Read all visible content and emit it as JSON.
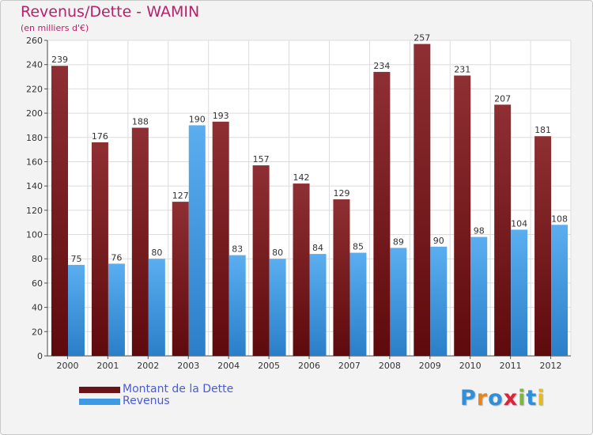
{
  "header": {
    "title": "Revenus/Dette - WAMIN",
    "subtitle": "(en milliers d'€)"
  },
  "colors": {
    "title": "#b5226a",
    "dette_top": "#8e2f33",
    "dette_bottom": "#5e0a0c",
    "revenus_top": "#5aaef0",
    "revenus_bottom": "#2a7fc8",
    "legend_text": "#4a5bd6"
  },
  "chart_data": {
    "type": "bar",
    "categories": [
      "2000",
      "2001",
      "2002",
      "2003",
      "2004",
      "2005",
      "2006",
      "2007",
      "2008",
      "2009",
      "2010",
      "2011",
      "2012"
    ],
    "series": [
      {
        "name": "Montant de la Dette",
        "values": [
          239,
          176,
          188,
          127,
          193,
          157,
          142,
          129,
          234,
          257,
          231,
          207,
          181
        ]
      },
      {
        "name": "Revenus",
        "values": [
          75,
          76,
          80,
          190,
          83,
          80,
          84,
          85,
          89,
          90,
          98,
          104,
          108
        ]
      }
    ],
    "title": "Revenus/Dette - WAMIN",
    "subtitle": "(en milliers d'€)",
    "ylim": [
      0,
      260
    ],
    "yticks": [
      0,
      20,
      40,
      60,
      80,
      100,
      120,
      140,
      160,
      180,
      200,
      220,
      240,
      260
    ],
    "grid": true,
    "legend_position": "bottom-left"
  },
  "legend": {
    "items": [
      {
        "label": "Montant de la Dette"
      },
      {
        "label": "Revenus"
      }
    ]
  },
  "logo": {
    "letters": [
      {
        "char": "P",
        "color": "#2f8fd8"
      },
      {
        "char": "r",
        "color": "#e8841c"
      },
      {
        "char": "o",
        "color": "#2f8fd8"
      },
      {
        "char": "x",
        "color": "#d9243a"
      },
      {
        "char": "i",
        "color": "#7ab83a"
      },
      {
        "char": "t",
        "color": "#2f8fd8"
      },
      {
        "char": "i",
        "color": "#e8b91c"
      }
    ]
  }
}
